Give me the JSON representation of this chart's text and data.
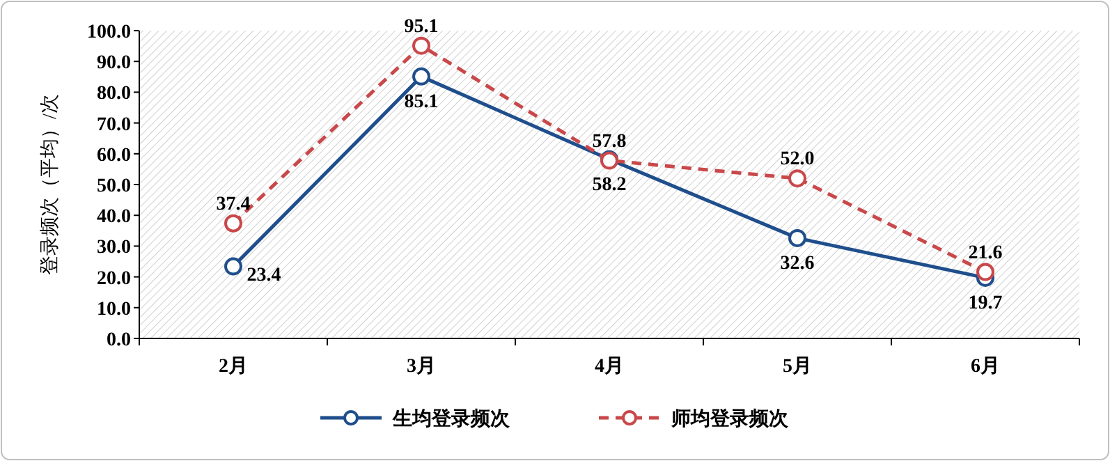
{
  "chart_data": {
    "type": "line",
    "ylabel": "登录频次（平均）/次",
    "categories": [
      "2月",
      "3月",
      "4月",
      "5月",
      "6月"
    ],
    "series": [
      {
        "name": "生均登录频次",
        "color": "#1f4e8c",
        "line_style": "solid",
        "values": [
          23.4,
          85.1,
          58.2,
          32.6,
          19.7
        ],
        "value_labels": [
          "23.4",
          "85.1",
          "58.2",
          "32.6",
          "19.7"
        ]
      },
      {
        "name": "师均登录频次",
        "color": "#c9484a",
        "line_style": "dashed",
        "values": [
          37.4,
          95.1,
          57.8,
          52.0,
          21.6
        ],
        "value_labels": [
          "37.4",
          "95.1",
          "57.8",
          "52.0",
          "21.6"
        ]
      }
    ],
    "ylim": [
      0,
      100
    ],
    "yticks": [
      {
        "value": 0,
        "label": "0.0"
      },
      {
        "value": 10,
        "label": "10.0"
      },
      {
        "value": 20,
        "label": "20.0"
      },
      {
        "value": 30,
        "label": "30.0"
      },
      {
        "value": 40,
        "label": "40.0"
      },
      {
        "value": 50,
        "label": "50.0"
      },
      {
        "value": 60,
        "label": "60.0"
      },
      {
        "value": 70,
        "label": "70.0"
      },
      {
        "value": 80,
        "label": "80.0"
      },
      {
        "value": 90,
        "label": "90.0"
      },
      {
        "value": 100,
        "label": "100.0"
      }
    ],
    "marker": "circle",
    "legend": "bottom",
    "grid": false
  }
}
